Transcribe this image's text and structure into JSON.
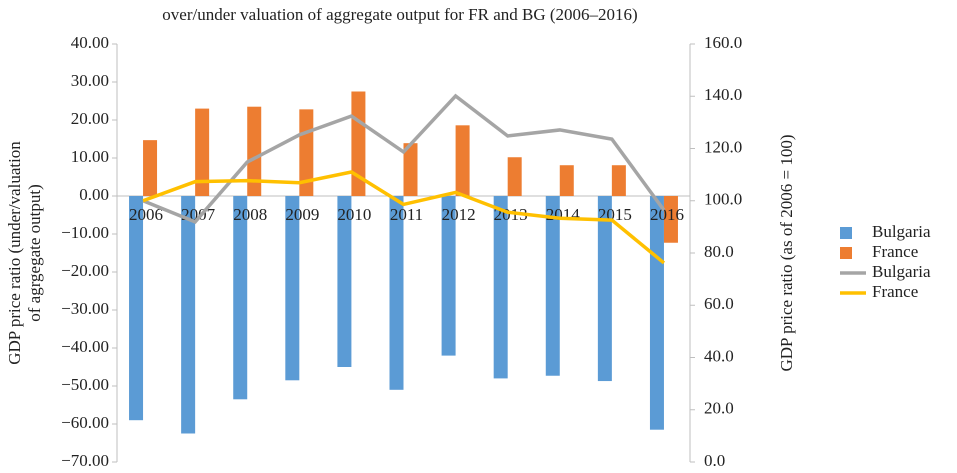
{
  "chart_data": {
    "type": "bar",
    "title": "over/under valuation of aggregate output for FR and BG (2006–2016)",
    "ylabel": [
      "GDP price ratio (under/valuation",
      "of agrgegate output)"
    ],
    "y2label": "GDP price ratio (as of 2006 = 100)",
    "categories": [
      "2006",
      "2007",
      "2008",
      "2009",
      "2010",
      "2011",
      "2012",
      "2013",
      "2014",
      "2015",
      "2016"
    ],
    "series": [
      {
        "name": "Bulgaria",
        "type": "bar",
        "color": "#5b9bd5",
        "values": [
          -59,
          -62.5,
          -53.5,
          -48.5,
          -45,
          -51,
          -42,
          -48,
          -47.3,
          -48.7,
          -61.5
        ]
      },
      {
        "name": "France",
        "type": "bar",
        "color": "#ed7d31",
        "values": [
          14.7,
          23,
          23.5,
          22.8,
          27.5,
          13.9,
          18.6,
          10.2,
          8.1,
          8.1,
          -12.3
        ]
      },
      {
        "name": "Bulgaria",
        "type": "line",
        "axis": "y2",
        "color": "#a5a5a5",
        "values": [
          100,
          91.9,
          114.8,
          125.2,
          132.4,
          118.7,
          140.1,
          124.8,
          127.1,
          123.6,
          96.4
        ]
      },
      {
        "name": "France",
        "type": "line",
        "axis": "y2",
        "color": "#ffc000",
        "values": [
          100,
          107.3,
          107.7,
          106.9,
          111,
          98.6,
          103.2,
          95.6,
          93.3,
          92.6,
          76.2
        ]
      }
    ],
    "ylim": [
      -70,
      40
    ],
    "yticks": [
      {
        "value": -70,
        "label": "−70.00"
      },
      {
        "value": -60,
        "label": "−60.00"
      },
      {
        "value": -50,
        "label": "−50.00"
      },
      {
        "value": -40,
        "label": "−40.00"
      },
      {
        "value": -30,
        "label": "−30.00"
      },
      {
        "value": -20,
        "label": "−20.00"
      },
      {
        "value": -10,
        "label": "−10.00"
      },
      {
        "value": 0,
        "label": "0.00"
      },
      {
        "value": 10,
        "label": "10.00"
      },
      {
        "value": 20,
        "label": "20.00"
      },
      {
        "value": 30,
        "label": "30.00"
      },
      {
        "value": 40,
        "label": "40.00"
      }
    ],
    "y2lim": [
      0,
      160
    ],
    "y2ticks": [
      {
        "value": 0,
        "label": "0.0"
      },
      {
        "value": 20,
        "label": "20.0"
      },
      {
        "value": 40,
        "label": "40.0"
      },
      {
        "value": 60,
        "label": "60.0"
      },
      {
        "value": 80,
        "label": "80.0"
      },
      {
        "value": 100,
        "label": "100.0"
      },
      {
        "value": 120,
        "label": "120.0"
      },
      {
        "value": 140,
        "label": "140.0"
      },
      {
        "value": 160,
        "label": "160.0"
      }
    ],
    "grid": false,
    "legend": "right"
  }
}
